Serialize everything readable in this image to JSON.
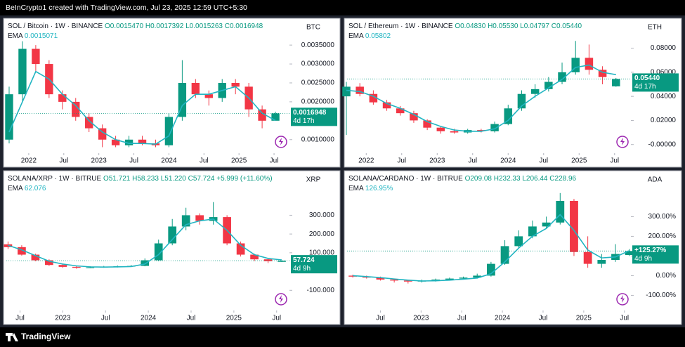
{
  "header": {
    "text": "BeInCrypto1 created with TradingView.com, Jul 23, 2025 12:59 UTC+5:30"
  },
  "footer": {
    "brand": "TradingView"
  },
  "chart_data": [
    {
      "type": "candlestick",
      "title": "SOL / Bitcoin · 1W · BINANCE",
      "symbol": "BTC",
      "legend": [
        "O0.0015470",
        "H0.0017392",
        "L0.0015263",
        "C0.0016948"
      ],
      "up_color": "#089981",
      "down_color": "#f23645",
      "x": [
        2021.72,
        2021.91,
        2022.1,
        2022.29,
        2022.48,
        2022.67,
        2022.86,
        2023.05,
        2023.24,
        2023.43,
        2023.62,
        2023.81,
        2024.0,
        2024.19,
        2024.38,
        2024.57,
        2024.76,
        2024.95,
        2025.14,
        2025.33,
        2025.52
      ],
      "open": [
        0.001,
        0.0022,
        0.0034,
        0.003,
        0.0022,
        0.002,
        0.0016,
        0.0013,
        0.001,
        0.00085,
        0.001,
        0.0009,
        0.00085,
        0.0016,
        0.0025,
        0.0022,
        0.0021,
        0.0025,
        0.0024,
        0.0018,
        0.0015
      ],
      "high": [
        0.0024,
        0.0036,
        0.0035,
        0.0031,
        0.0023,
        0.0021,
        0.0017,
        0.0014,
        0.0011,
        0.0011,
        0.0011,
        0.001,
        0.0017,
        0.0031,
        0.0026,
        0.0023,
        0.0026,
        0.0026,
        0.0025,
        0.0019,
        0.0017392
      ],
      "low": [
        0.0009,
        0.002,
        0.0028,
        0.0021,
        0.0018,
        0.0015,
        0.0012,
        0.0008,
        0.0008,
        0.0008,
        0.00085,
        0.0008,
        0.0008,
        0.0015,
        0.0021,
        0.0019,
        0.002,
        0.0022,
        0.0016,
        0.0013,
        0.0015263
      ],
      "close": [
        0.0022,
        0.0034,
        0.003,
        0.0022,
        0.002,
        0.0016,
        0.0013,
        0.001,
        0.00085,
        0.001,
        0.0009,
        0.00085,
        0.0016,
        0.0025,
        0.0022,
        0.0021,
        0.0025,
        0.0024,
        0.0018,
        0.0015,
        0.0016948
      ],
      "ema": {
        "name": "EMA",
        "color": "#22b5c2",
        "last_label": "0.0015071",
        "values": [
          0.0012,
          0.002,
          0.0028,
          0.0026,
          0.0022,
          0.0019,
          0.0015,
          0.0012,
          0.001,
          0.0009,
          0.0009,
          0.00088,
          0.0011,
          0.0019,
          0.0022,
          0.0022,
          0.0023,
          0.0024,
          0.0021,
          0.0017,
          0.0015071
        ]
      },
      "last_label": "0.0016948",
      "countdown": "4d 17h",
      "xlim": [
        2021.68,
        2025.72
      ],
      "ylim": [
        0.00068,
        0.0038
      ],
      "xticks": [
        {
          "value": 2022,
          "label": "2022"
        },
        {
          "value": 2022.5,
          "label": "Jul"
        },
        {
          "value": 2023,
          "label": "2023"
        },
        {
          "value": 2023.5,
          "label": "Jul"
        },
        {
          "value": 2024,
          "label": "2024"
        },
        {
          "value": 2024.5,
          "label": "Jul"
        },
        {
          "value": 2025,
          "label": "2025"
        },
        {
          "value": 2025.5,
          "label": "Jul"
        }
      ],
      "yticks": [
        {
          "value": 0.0035,
          "label": "0.0035000"
        },
        {
          "value": 0.003,
          "label": "0.0030000"
        },
        {
          "value": 0.0025,
          "label": "0.0025000"
        },
        {
          "value": 0.002,
          "label": "0.0020000"
        },
        {
          "value": 0.001,
          "label": "0.0010000"
        }
      ]
    },
    {
      "type": "candlestick",
      "title": "SOL / Ethereum · 1W · BINANCE",
      "symbol": "ETH",
      "legend": [
        "O0.04830",
        "H0.05530",
        "L0.04797",
        "C0.05440"
      ],
      "up_color": "#089981",
      "down_color": "#f23645",
      "x": [
        2021.72,
        2021.91,
        2022.1,
        2022.29,
        2022.48,
        2022.67,
        2022.86,
        2023.05,
        2023.24,
        2023.43,
        2023.62,
        2023.81,
        2024.0,
        2024.19,
        2024.38,
        2024.57,
        2024.76,
        2024.95,
        2025.14,
        2025.33,
        2025.52
      ],
      "open": [
        0.04,
        0.048,
        0.042,
        0.035,
        0.03,
        0.026,
        0.02,
        0.014,
        0.011,
        0.01,
        0.012,
        0.011,
        0.017,
        0.03,
        0.042,
        0.046,
        0.052,
        0.06,
        0.072,
        0.062,
        0.0483
      ],
      "high": [
        0.052,
        0.051,
        0.045,
        0.037,
        0.032,
        0.028,
        0.021,
        0.015,
        0.013,
        0.013,
        0.013,
        0.019,
        0.033,
        0.045,
        0.05,
        0.056,
        0.068,
        0.086,
        0.083,
        0.065,
        0.0553
      ],
      "low": [
        0.008,
        0.04,
        0.033,
        0.028,
        0.024,
        0.018,
        0.012,
        0.009,
        0.009,
        0.009,
        0.01,
        0.01,
        0.016,
        0.028,
        0.039,
        0.044,
        0.05,
        0.058,
        0.058,
        0.05,
        0.04797
      ],
      "close": [
        0.048,
        0.042,
        0.035,
        0.03,
        0.026,
        0.02,
        0.014,
        0.011,
        0.01,
        0.012,
        0.011,
        0.017,
        0.03,
        0.042,
        0.046,
        0.052,
        0.06,
        0.072,
        0.062,
        0.056,
        0.0544
      ],
      "ema": {
        "name": "EMA",
        "color": "#22b5c2",
        "last_label": "0.05802",
        "values": [
          0.045,
          0.044,
          0.04,
          0.034,
          0.03,
          0.025,
          0.019,
          0.015,
          0.012,
          0.011,
          0.011,
          0.013,
          0.02,
          0.032,
          0.04,
          0.047,
          0.054,
          0.064,
          0.066,
          0.06,
          0.05802
        ]
      },
      "last_label": "0.05440",
      "countdown": "4d 17h",
      "xlim": [
        2021.73,
        2025.73
      ],
      "ylim": [
        -0.006,
        0.092
      ],
      "xticks": [
        {
          "value": 2022,
          "label": "2022"
        },
        {
          "value": 2022.5,
          "label": "Jul"
        },
        {
          "value": 2023,
          "label": "2023"
        },
        {
          "value": 2023.5,
          "label": "Jul"
        },
        {
          "value": 2024,
          "label": "2024"
        },
        {
          "value": 2024.5,
          "label": "Jul"
        },
        {
          "value": 2025,
          "label": "2025"
        },
        {
          "value": 2025.5,
          "label": "Jul"
        }
      ],
      "yticks": [
        {
          "value": 0.08,
          "label": "0.08000"
        },
        {
          "value": 0.06,
          "label": "0.06000"
        },
        {
          "value": 0.04,
          "label": "0.04000"
        },
        {
          "value": 0.02,
          "label": "0.02000"
        },
        {
          "value": 0,
          "label": "-0.00000"
        }
      ]
    },
    {
      "type": "candlestick",
      "title": "SOLANA/XRP · 1W · BITRUE",
      "symbol": "XRP",
      "legend": [
        "O51.721",
        "H58.233",
        "L51.220",
        "C57.724",
        "+5.999 (+11.60%)"
      ],
      "up_color": "#089981",
      "down_color": "#f23645",
      "x": [
        2022.36,
        2022.52,
        2022.68,
        2022.84,
        2023.0,
        2023.16,
        2023.32,
        2023.48,
        2023.64,
        2023.8,
        2023.96,
        2024.12,
        2024.28,
        2024.44,
        2024.6,
        2024.76,
        2024.92,
        2025.08,
        2025.24,
        2025.4,
        2025.56
      ],
      "open": [
        145,
        130,
        90,
        60,
        35,
        25,
        20,
        22,
        25,
        28,
        30,
        60,
        150,
        240,
        300,
        270,
        290,
        150,
        90,
        65,
        51.721
      ],
      "high": [
        160,
        140,
        95,
        65,
        40,
        30,
        28,
        30,
        32,
        35,
        70,
        170,
        280,
        340,
        310,
        370,
        300,
        160,
        95,
        70,
        58.233
      ],
      "low": [
        120,
        85,
        55,
        30,
        20,
        15,
        18,
        20,
        22,
        25,
        28,
        55,
        140,
        220,
        250,
        250,
        140,
        80,
        55,
        45,
        51.22
      ],
      "close": [
        130,
        90,
        60,
        35,
        25,
        20,
        22,
        25,
        28,
        30,
        60,
        150,
        240,
        300,
        270,
        290,
        150,
        90,
        65,
        55,
        57.724
      ],
      "ema": {
        "name": "EMA",
        "color": "#22b5c2",
        "last_label": "62.076",
        "values": [
          140,
          115,
          85,
          55,
          40,
          30,
          25,
          24,
          25,
          27,
          40,
          90,
          170,
          250,
          270,
          280,
          220,
          140,
          90,
          70,
          62.076
        ]
      },
      "last_label": "57.724",
      "countdown": "4d 9h",
      "xlim": [
        2022.34,
        2025.65
      ],
      "ylim": [
        -200,
        455
      ],
      "xticks": [
        {
          "value": 2022.5,
          "label": "Jul"
        },
        {
          "value": 2023,
          "label": "2023"
        },
        {
          "value": 2023.5,
          "label": "Jul"
        },
        {
          "value": 2024,
          "label": "2024"
        },
        {
          "value": 2024.5,
          "label": "Jul"
        },
        {
          "value": 2025,
          "label": "2025"
        },
        {
          "value": 2025.5,
          "label": "Jul"
        }
      ],
      "yticks": [
        {
          "value": 300,
          "label": "300.000"
        },
        {
          "value": 200,
          "label": "200.000"
        },
        {
          "value": 100,
          "label": "100.000"
        },
        {
          "value": -100,
          "label": "-100.000"
        }
      ]
    },
    {
      "type": "candlestick",
      "title": "SOLANA/CARDANO · 1W · BITRUE",
      "symbol": "ADA",
      "legend": [
        "O209.08",
        "H232.33",
        "L206.44",
        "C228.96"
      ],
      "up_color": "#089981",
      "down_color": "#f23645",
      "x": [
        2022.16,
        2022.33,
        2022.5,
        2022.67,
        2022.84,
        2023.01,
        2023.18,
        2023.35,
        2023.52,
        2023.69,
        2023.86,
        2024.03,
        2024.2,
        2024.37,
        2024.54,
        2024.71,
        2024.88,
        2025.05,
        2025.22,
        2025.39,
        2025.56
      ],
      "open": [
        0,
        -5,
        -10,
        -20,
        -25,
        -30,
        -25,
        -20,
        -15,
        -10,
        0,
        60,
        150,
        200,
        250,
        270,
        380,
        120,
        60,
        80,
        105
      ],
      "high": [
        5,
        0,
        -5,
        -15,
        -20,
        -20,
        -15,
        -10,
        -5,
        10,
        70,
        180,
        230,
        280,
        300,
        420,
        390,
        200,
        110,
        160,
        135
      ],
      "low": [
        -10,
        -15,
        -25,
        -35,
        -40,
        -35,
        -30,
        -25,
        -20,
        -15,
        -5,
        55,
        140,
        190,
        240,
        260,
        100,
        40,
        40,
        70,
        100
      ],
      "close": [
        -5,
        -10,
        -20,
        -25,
        -30,
        -25,
        -20,
        -15,
        -10,
        0,
        60,
        150,
        200,
        250,
        270,
        380,
        120,
        60,
        80,
        110,
        125.27
      ],
      "ema": {
        "name": "EMA",
        "color": "#22b5c2",
        "last_label": "126.95%",
        "values": [
          0,
          -5,
          -10,
          -17,
          -23,
          -27,
          -26,
          -23,
          -18,
          -12,
          10,
          70,
          140,
          200,
          240,
          310,
          230,
          130,
          90,
          95,
          126.95
        ]
      },
      "last_label": "+125.27%",
      "countdown": "4d 9h",
      "xlim": [
        2022.09,
        2025.58
      ],
      "ylim": [
        -170,
        455
      ],
      "xticks": [
        {
          "value": 2022.5,
          "label": "Jul"
        },
        {
          "value": 2023,
          "label": "2023"
        },
        {
          "value": 2023.5,
          "label": "Jul"
        },
        {
          "value": 2024,
          "label": "2024"
        },
        {
          "value": 2024.5,
          "label": "Jul"
        },
        {
          "value": 2025,
          "label": "2025"
        },
        {
          "value": 2025.5,
          "label": "Jul"
        }
      ],
      "yticks": [
        {
          "value": 300,
          "label": "300.00%"
        },
        {
          "value": 200,
          "label": "200.00%"
        },
        {
          "value": 100,
          "label": "100.00%"
        },
        {
          "value": 0,
          "label": "0.00%"
        },
        {
          "value": -100,
          "label": "-100.00%"
        }
      ]
    }
  ]
}
